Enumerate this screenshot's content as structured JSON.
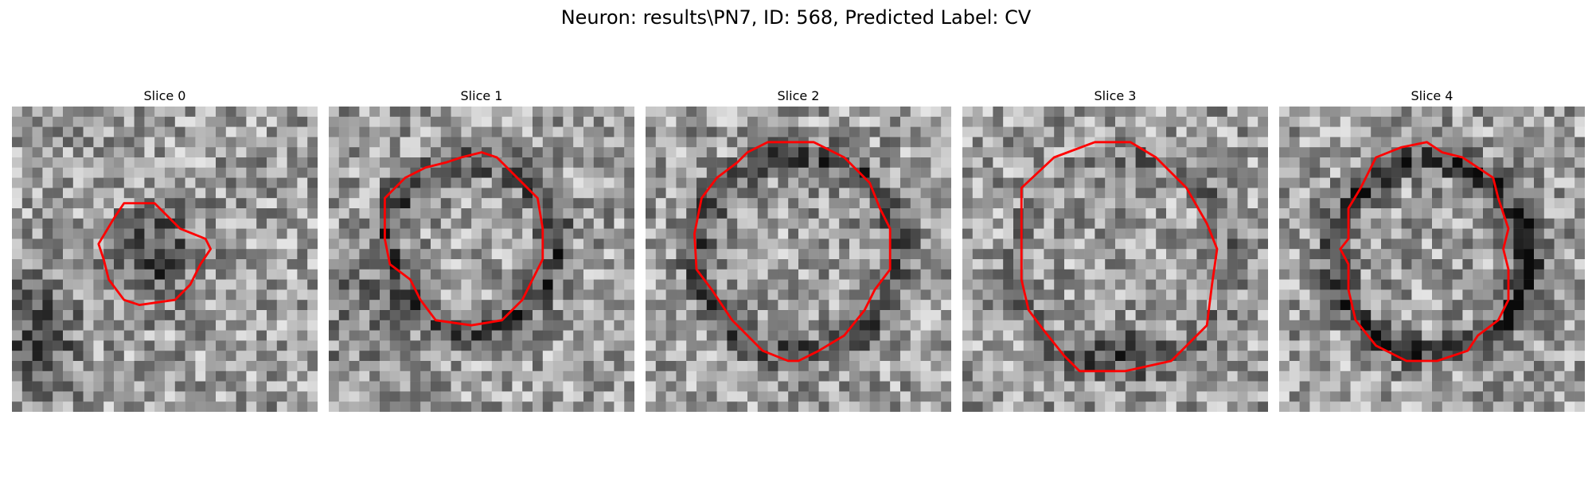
{
  "figure": {
    "title": "Neuron: results\\PN7, ID: 568, Predicted Label: CV",
    "colormap": "gray",
    "contour_color": "#ff0000"
  },
  "slices": [
    {
      "label": "Slice 0",
      "image": "grayscale-noise-patch",
      "dark_region": "small-center-blob"
    },
    {
      "label": "Slice 1",
      "image": "grayscale-noise-patch",
      "dark_region": "ring"
    },
    {
      "label": "Slice 2",
      "image": "grayscale-noise-patch",
      "dark_region": "ring"
    },
    {
      "label": "Slice 3",
      "image": "grayscale-noise-patch",
      "dark_region": "ring-bottom"
    },
    {
      "label": "Slice 4",
      "image": "grayscale-noise-patch",
      "dark_region": "ring"
    }
  ]
}
